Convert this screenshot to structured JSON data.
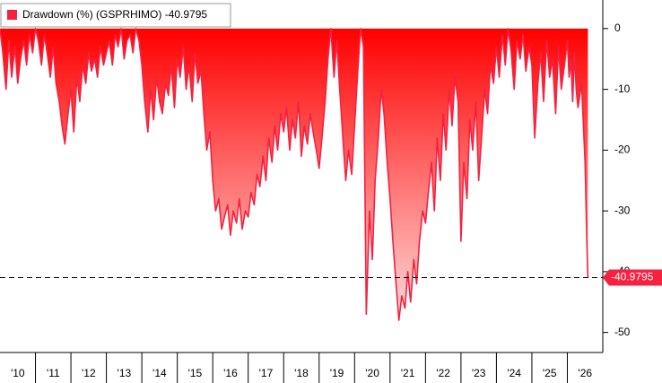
{
  "chart_data": {
    "type": "area",
    "series": [
      {
        "name": "Drawdown (%) (GSPRHIMO)",
        "color": "#f5213f",
        "x": [
          2010.0,
          2010.08,
          2010.17,
          2010.25,
          2010.33,
          2010.42,
          2010.5,
          2010.58,
          2010.67,
          2010.75,
          2010.83,
          2010.92,
          2011.0,
          2011.08,
          2011.17,
          2011.25,
          2011.33,
          2011.42,
          2011.5,
          2011.58,
          2011.67,
          2011.75,
          2011.83,
          2011.92,
          2012.0,
          2012.08,
          2012.17,
          2012.25,
          2012.33,
          2012.42,
          2012.5,
          2012.58,
          2012.67,
          2012.75,
          2012.83,
          2012.92,
          2013.0,
          2013.08,
          2013.17,
          2013.25,
          2013.33,
          2013.42,
          2013.5,
          2013.58,
          2013.67,
          2013.75,
          2013.83,
          2013.92,
          2014.0,
          2014.08,
          2014.17,
          2014.25,
          2014.33,
          2014.42,
          2014.5,
          2014.58,
          2014.67,
          2014.75,
          2014.83,
          2014.92,
          2015.0,
          2015.08,
          2015.17,
          2015.25,
          2015.33,
          2015.42,
          2015.5,
          2015.58,
          2015.67,
          2015.75,
          2015.83,
          2015.92,
          2016.0,
          2016.08,
          2016.17,
          2016.25,
          2016.33,
          2016.42,
          2016.5,
          2016.58,
          2016.67,
          2016.75,
          2016.83,
          2016.92,
          2017.0,
          2017.08,
          2017.17,
          2017.25,
          2017.33,
          2017.42,
          2017.5,
          2017.58,
          2017.67,
          2017.75,
          2017.83,
          2017.92,
          2018.0,
          2018.08,
          2018.17,
          2018.25,
          2018.33,
          2018.42,
          2018.5,
          2018.58,
          2018.67,
          2018.75,
          2018.83,
          2018.92,
          2019.0,
          2019.08,
          2019.17,
          2019.25,
          2019.33,
          2019.42,
          2019.5,
          2019.58,
          2019.67,
          2019.75,
          2019.83,
          2019.92,
          2020.0,
          2020.08,
          2020.17,
          2020.25,
          2020.33,
          2020.42,
          2020.5,
          2020.58,
          2020.67,
          2020.75,
          2020.83,
          2020.92,
          2021.0,
          2021.08,
          2021.17,
          2021.25,
          2021.33,
          2021.42,
          2021.5,
          2021.58,
          2021.67,
          2021.75,
          2021.83,
          2021.92,
          2022.0,
          2022.08,
          2022.17,
          2022.25,
          2022.33,
          2022.42,
          2022.5,
          2022.58,
          2022.67,
          2022.75,
          2022.83,
          2022.92,
          2023.0,
          2023.08,
          2023.17,
          2023.25,
          2023.33,
          2023.42,
          2023.5,
          2023.58,
          2023.67,
          2023.75,
          2023.83,
          2023.92,
          2024.0,
          2024.08,
          2024.17,
          2024.25,
          2024.33,
          2024.42,
          2024.5,
          2024.58,
          2024.67,
          2024.75,
          2024.83,
          2024.92,
          2025.0,
          2025.08,
          2025.17,
          2025.25,
          2025.33,
          2025.42,
          2025.5,
          2025.58,
          2025.67,
          2025.75,
          2025.83,
          2025.92,
          2026.0,
          2026.05,
          2026.1,
          2026.15,
          2026.2,
          2026.25,
          2026.3,
          2026.4,
          2026.5,
          2026.55,
          2026.58
        ],
        "values": [
          0,
          -4,
          -10,
          -2,
          -8,
          -3,
          -9,
          -5,
          -2,
          -6,
          -1,
          -4,
          0,
          -2,
          -6,
          -1,
          -4,
          -8,
          -3,
          -9,
          -12,
          -16,
          -19,
          -14,
          -10,
          -17,
          -8,
          -12,
          -6,
          -9,
          -4,
          -7,
          -5,
          -8,
          -3,
          -6,
          -4,
          -2,
          -6,
          -1,
          -3,
          0,
          -5,
          -2,
          -1,
          -4,
          0,
          -2,
          -6,
          -12,
          -17,
          -10,
          -15,
          -8,
          -12,
          -14,
          -9,
          -11,
          -6,
          -13,
          -5,
          -8,
          -3,
          -10,
          -6,
          -12,
          -4,
          -9,
          -7,
          -14,
          -20,
          -17,
          -25,
          -30,
          -28,
          -33,
          -31,
          -29,
          -34,
          -30,
          -32,
          -28,
          -33,
          -30,
          -31,
          -27,
          -29,
          -24,
          -26,
          -21,
          -25,
          -18,
          -22,
          -16,
          -20,
          -14,
          -17,
          -13,
          -20,
          -15,
          -18,
          -12,
          -21,
          -16,
          -19,
          -14,
          -17,
          -20,
          -23,
          -18,
          -12,
          -5,
          0,
          -8,
          -2,
          -10,
          -18,
          -25,
          -20,
          -24,
          -16,
          -8,
          0,
          -3,
          -47,
          -30,
          -38,
          -25,
          -18,
          -10,
          -14,
          -22,
          -28,
          -35,
          -42,
          -48,
          -44,
          -46,
          -40,
          -45,
          -38,
          -42,
          -35,
          -30,
          -32,
          -27,
          -22,
          -30,
          -18,
          -25,
          -14,
          -20,
          -10,
          -16,
          -8,
          -12,
          -35,
          -22,
          -28,
          -15,
          -20,
          -12,
          -25,
          -18,
          -10,
          -14,
          -6,
          -9,
          -3,
          -8,
          -1,
          -6,
          0,
          -4,
          -10,
          -2,
          -5,
          -1,
          -7,
          -3,
          -6,
          -18,
          -9,
          -4,
          -12,
          -2,
          -8,
          -5,
          -14,
          -3,
          -10,
          -6,
          -2,
          -8,
          -5,
          -12,
          -4,
          -10,
          -13,
          -9,
          -22,
          -35,
          -40.9795
        ]
      }
    ],
    "xlim": [
      2010,
      2027
    ],
    "xticks": [
      {
        "value": 2010,
        "label": "'10"
      },
      {
        "value": 2011,
        "label": "'11"
      },
      {
        "value": 2012,
        "label": "'12"
      },
      {
        "value": 2013,
        "label": "'13"
      },
      {
        "value": 2014,
        "label": "'14"
      },
      {
        "value": 2015,
        "label": "'15"
      },
      {
        "value": 2016,
        "label": "'16"
      },
      {
        "value": 2017,
        "label": "'17"
      },
      {
        "value": 2018,
        "label": "'18"
      },
      {
        "value": 2019,
        "label": "'19"
      },
      {
        "value": 2020,
        "label": "'20"
      },
      {
        "value": 2021,
        "label": "'21"
      },
      {
        "value": 2022,
        "label": "'22"
      },
      {
        "value": 2023,
        "label": "'23"
      },
      {
        "value": 2024,
        "label": "'24"
      },
      {
        "value": 2025,
        "label": "'25"
      },
      {
        "value": 2026,
        "label": "'26"
      }
    ],
    "ylim": [
      -53.3,
      4.7
    ],
    "yticks": [
      0,
      -10,
      -20,
      -30,
      -40,
      -50
    ]
  }
}
